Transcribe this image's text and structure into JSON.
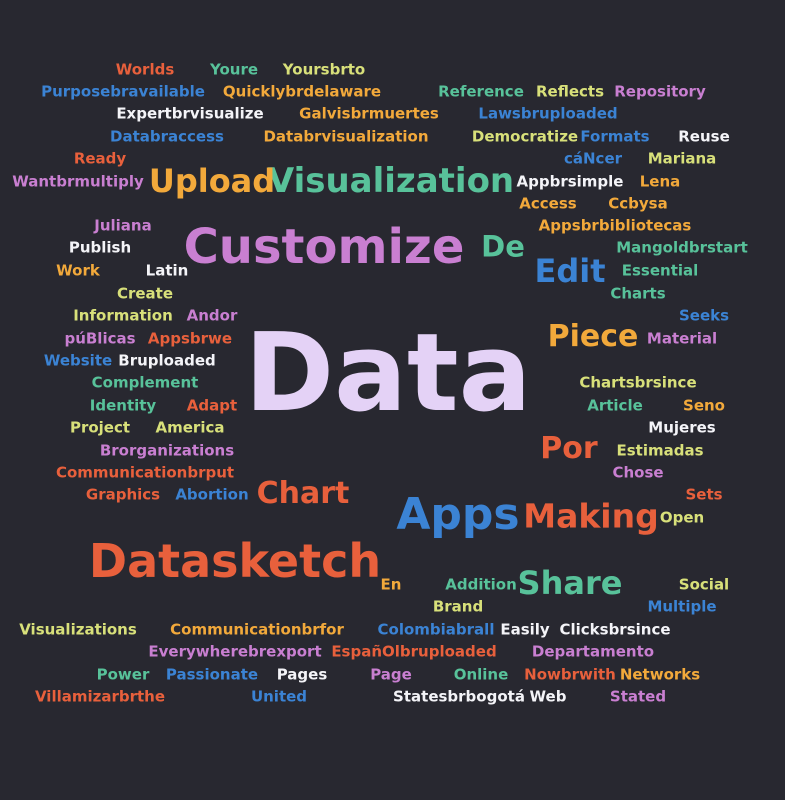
{
  "words": [
    {
      "text": "Data",
      "color": "#e4d2f6"
    },
    {
      "text": "Customize",
      "color": "#c97fd1"
    },
    {
      "text": "Datasketch",
      "color": "#e8603c"
    },
    {
      "text": "Apps",
      "color": "#3b83d4"
    },
    {
      "text": "Visualization",
      "color": "#58c29a"
    },
    {
      "text": "Upload",
      "color": "#f2a93b"
    },
    {
      "text": "Making",
      "color": "#e8603c"
    },
    {
      "text": "Share",
      "color": "#58c29a"
    },
    {
      "text": "Chart",
      "color": "#e8603c"
    },
    {
      "text": "Piece",
      "color": "#f2a93b"
    },
    {
      "text": "Edit",
      "color": "#3b83d4"
    },
    {
      "text": "De",
      "color": "#58c29a"
    },
    {
      "text": "Por",
      "color": "#e8603c"
    },
    {
      "text": "Worlds",
      "color": "#e8603c"
    },
    {
      "text": "Youre",
      "color": "#58c29a"
    },
    {
      "text": "Yoursbrto",
      "color": "#d8e07a"
    },
    {
      "text": "Purposebravailable",
      "color": "#3b83d4"
    },
    {
      "text": "Quicklybrdelaware",
      "color": "#f2a93b"
    },
    {
      "text": "Reference",
      "color": "#58c29a"
    },
    {
      "text": "Reflects",
      "color": "#d8e07a"
    },
    {
      "text": "Repository",
      "color": "#c97fd1"
    },
    {
      "text": "Expertbrvisualize",
      "color": "#f4f4f8"
    },
    {
      "text": "Galvisbrmuertes",
      "color": "#f2a93b"
    },
    {
      "text": "Lawsbruploaded",
      "color": "#3b83d4"
    },
    {
      "text": "Databraccess",
      "color": "#3b83d4"
    },
    {
      "text": "Databrvisualization",
      "color": "#f2a93b"
    },
    {
      "text": "Democratize",
      "color": "#d8e07a"
    },
    {
      "text": "Formats",
      "color": "#3b83d4"
    },
    {
      "text": "Reuse",
      "color": "#f4f4f8"
    },
    {
      "text": "Ready",
      "color": "#e8603c"
    },
    {
      "text": "cáNcer",
      "color": "#3b83d4"
    },
    {
      "text": "Mariana",
      "color": "#d8e07a"
    },
    {
      "text": "Wantbrmultiply",
      "color": "#c97fd1"
    },
    {
      "text": "Appbrsimple",
      "color": "#f4f4f8"
    },
    {
      "text": "Lena",
      "color": "#f2a93b"
    },
    {
      "text": "Access",
      "color": "#f2a93b"
    },
    {
      "text": "Ccbysa",
      "color": "#f2a93b"
    },
    {
      "text": "Juliana",
      "color": "#c97fd1"
    },
    {
      "text": "Appsbrbibliotecas",
      "color": "#f2a93b"
    },
    {
      "text": "Publish",
      "color": "#f4f4f8"
    },
    {
      "text": "Mangoldbrstart",
      "color": "#58c29a"
    },
    {
      "text": "Work",
      "color": "#f2a93b"
    },
    {
      "text": "Latin",
      "color": "#f4f4f8"
    },
    {
      "text": "Essential",
      "color": "#58c29a"
    },
    {
      "text": "Create",
      "color": "#d8e07a"
    },
    {
      "text": "Charts",
      "color": "#58c29a"
    },
    {
      "text": "Information",
      "color": "#d8e07a"
    },
    {
      "text": "Andor",
      "color": "#c97fd1"
    },
    {
      "text": "Seeks",
      "color": "#3b83d4"
    },
    {
      "text": "púBlicas",
      "color": "#c97fd1"
    },
    {
      "text": "Appsbrwe",
      "color": "#e8603c"
    },
    {
      "text": "Material",
      "color": "#c97fd1"
    },
    {
      "text": "Website",
      "color": "#3b83d4"
    },
    {
      "text": "Bruploaded",
      "color": "#f4f4f8"
    },
    {
      "text": "Complement",
      "color": "#58c29a"
    },
    {
      "text": "Chartsbrsince",
      "color": "#d8e07a"
    },
    {
      "text": "Identity",
      "color": "#58c29a"
    },
    {
      "text": "Adapt",
      "color": "#e8603c"
    },
    {
      "text": "Article",
      "color": "#58c29a"
    },
    {
      "text": "Seno",
      "color": "#f2a93b"
    },
    {
      "text": "Project",
      "color": "#d8e07a"
    },
    {
      "text": "America",
      "color": "#d8e07a"
    },
    {
      "text": "Mujeres",
      "color": "#f4f4f8"
    },
    {
      "text": "Brorganizations",
      "color": "#c97fd1"
    },
    {
      "text": "Estimadas",
      "color": "#d8e07a"
    },
    {
      "text": "Communicationbrput",
      "color": "#e8603c"
    },
    {
      "text": "Chose",
      "color": "#c97fd1"
    },
    {
      "text": "Graphics",
      "color": "#e8603c"
    },
    {
      "text": "Abortion",
      "color": "#3b83d4"
    },
    {
      "text": "Sets",
      "color": "#e8603c"
    },
    {
      "text": "Open",
      "color": "#d8e07a"
    },
    {
      "text": "En",
      "color": "#f2a93b"
    },
    {
      "text": "Addition",
      "color": "#58c29a"
    },
    {
      "text": "Social",
      "color": "#d8e07a"
    },
    {
      "text": "Brand",
      "color": "#d8e07a"
    },
    {
      "text": "Multiple",
      "color": "#3b83d4"
    },
    {
      "text": "Visualizations",
      "color": "#d8e07a"
    },
    {
      "text": "Communicationbrfor",
      "color": "#f2a93b"
    },
    {
      "text": "Colombiabrall",
      "color": "#3b83d4"
    },
    {
      "text": "Easily",
      "color": "#f4f4f8"
    },
    {
      "text": "Clicksbrsince",
      "color": "#f4f4f8"
    },
    {
      "text": "Everywherebrexport",
      "color": "#c97fd1"
    },
    {
      "text": "EspañOlbruploaded",
      "color": "#e8603c"
    },
    {
      "text": "Departamento",
      "color": "#c97fd1"
    },
    {
      "text": "Power",
      "color": "#58c29a"
    },
    {
      "text": "Passionate",
      "color": "#3b83d4"
    },
    {
      "text": "Pages",
      "color": "#f4f4f8"
    },
    {
      "text": "Page",
      "color": "#c97fd1"
    },
    {
      "text": "Online",
      "color": "#58c29a"
    },
    {
      "text": "Nowbrwith",
      "color": "#e8603c"
    },
    {
      "text": "Networks",
      "color": "#f2a93b"
    },
    {
      "text": "Villamizarbrthe",
      "color": "#e8603c"
    },
    {
      "text": "United",
      "color": "#3b83d4"
    },
    {
      "text": "Statesbrbogotá",
      "color": "#f4f4f8"
    },
    {
      "text": "Web",
      "color": "#f4f4f8"
    },
    {
      "text": "Stated",
      "color": "#c97fd1"
    }
  ]
}
